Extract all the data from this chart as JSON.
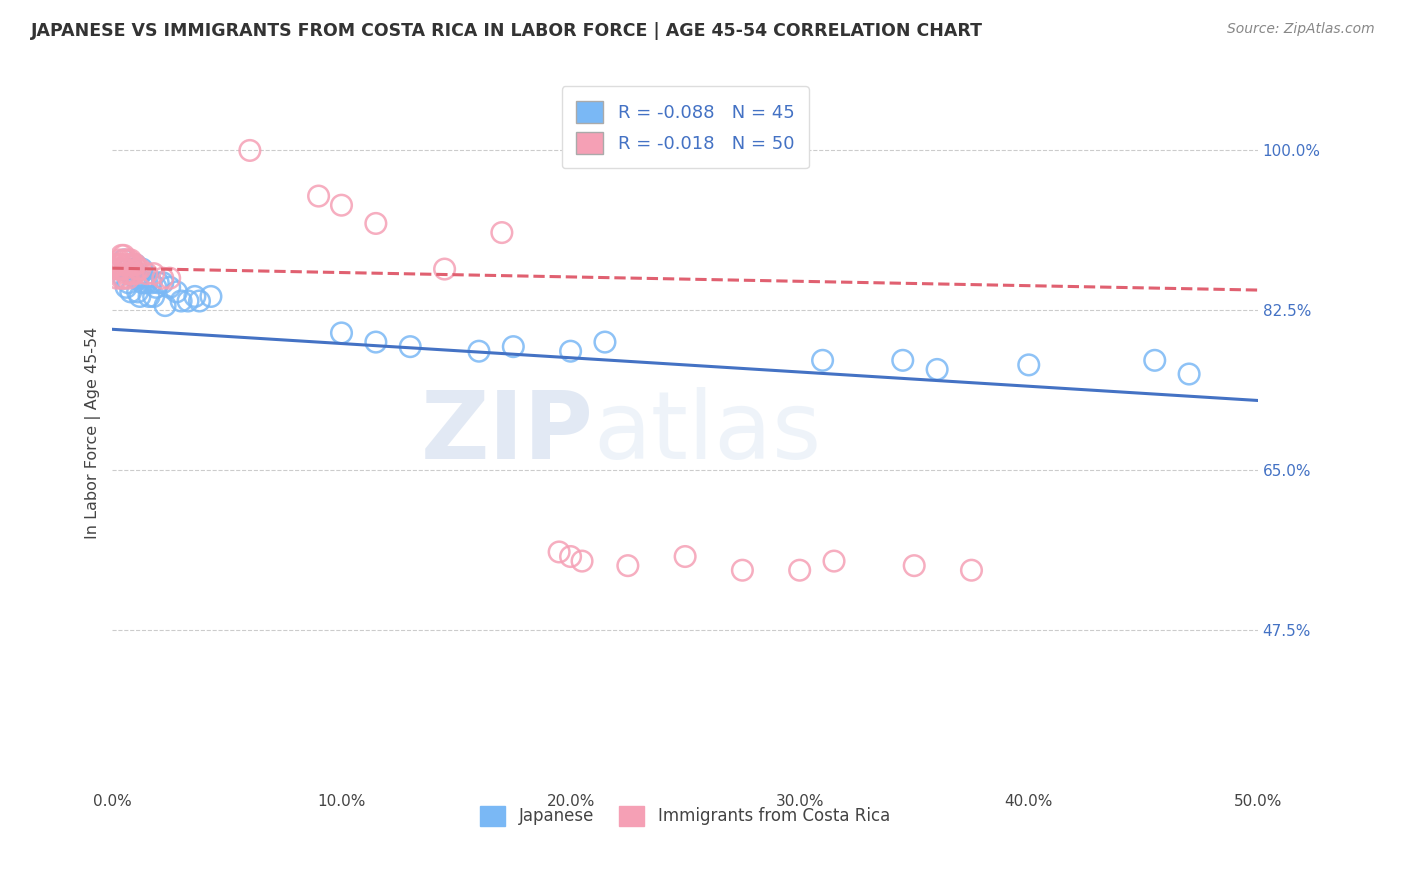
{
  "title": "JAPANESE VS IMMIGRANTS FROM COSTA RICA IN LABOR FORCE | AGE 45-54 CORRELATION CHART",
  "source": "Source: ZipAtlas.com",
  "ylabel": "In Labor Force | Age 45-54",
  "xlim": [
    0.0,
    0.5
  ],
  "ylim": [
    0.3,
    1.08
  ],
  "xtick_labels": [
    "0.0%",
    "10.0%",
    "20.0%",
    "30.0%",
    "40.0%",
    "50.0%"
  ],
  "xtick_vals": [
    0.0,
    0.1,
    0.2,
    0.3,
    0.4,
    0.5
  ],
  "ytick_right_labels": [
    "100.0%",
    "82.5%",
    "65.0%",
    "47.5%"
  ],
  "ytick_right_vals": [
    1.0,
    0.825,
    0.65,
    0.475
  ],
  "grid_color": "#cccccc",
  "background_color": "#ffffff",
  "blue_color": "#7ab8f5",
  "pink_color": "#f5a0b5",
  "blue_R": -0.088,
  "blue_N": 45,
  "pink_R": -0.018,
  "pink_N": 50,
  "legend_label_blue": "Japanese",
  "legend_label_pink": "Immigrants from Costa Rica",
  "watermark_zip": "ZIP",
  "watermark_atlas": "atlas",
  "blue_trend_x": [
    0.0,
    0.5
  ],
  "blue_trend_y": [
    0.804,
    0.726
  ],
  "pink_trend_x": [
    0.0,
    0.5
  ],
  "pink_trend_y": [
    0.871,
    0.847
  ],
  "blue_points_x": [
    0.003,
    0.005,
    0.005,
    0.006,
    0.007,
    0.007,
    0.008,
    0.008,
    0.009,
    0.01,
    0.01,
    0.011,
    0.011,
    0.012,
    0.013,
    0.013,
    0.014,
    0.015,
    0.016,
    0.017,
    0.018,
    0.019,
    0.02,
    0.022,
    0.023,
    0.025,
    0.028,
    0.03,
    0.033,
    0.036,
    0.038,
    0.043,
    0.1,
    0.115,
    0.13,
    0.16,
    0.175,
    0.2,
    0.215,
    0.31,
    0.345,
    0.36,
    0.4,
    0.455,
    0.47
  ],
  "blue_points_y": [
    0.87,
    0.88,
    0.86,
    0.85,
    0.87,
    0.855,
    0.865,
    0.845,
    0.87,
    0.875,
    0.86,
    0.845,
    0.86,
    0.84,
    0.855,
    0.87,
    0.855,
    0.855,
    0.84,
    0.855,
    0.84,
    0.85,
    0.855,
    0.855,
    0.83,
    0.85,
    0.845,
    0.835,
    0.835,
    0.84,
    0.835,
    0.84,
    0.8,
    0.79,
    0.785,
    0.78,
    0.785,
    0.78,
    0.79,
    0.77,
    0.77,
    0.76,
    0.765,
    0.77,
    0.755
  ],
  "pink_points_x": [
    0.001,
    0.002,
    0.002,
    0.003,
    0.003,
    0.003,
    0.004,
    0.004,
    0.004,
    0.004,
    0.005,
    0.005,
    0.005,
    0.005,
    0.006,
    0.006,
    0.006,
    0.007,
    0.007,
    0.007,
    0.007,
    0.008,
    0.008,
    0.008,
    0.009,
    0.009,
    0.01,
    0.01,
    0.011,
    0.012,
    0.015,
    0.018,
    0.022,
    0.025,
    0.06,
    0.09,
    0.1,
    0.115,
    0.145,
    0.17,
    0.195,
    0.2,
    0.205,
    0.225,
    0.25,
    0.275,
    0.3,
    0.315,
    0.35,
    0.375
  ],
  "pink_points_y": [
    0.875,
    0.87,
    0.86,
    0.88,
    0.875,
    0.87,
    0.885,
    0.875,
    0.87,
    0.86,
    0.885,
    0.88,
    0.87,
    0.86,
    0.88,
    0.875,
    0.865,
    0.88,
    0.875,
    0.865,
    0.86,
    0.88,
    0.875,
    0.865,
    0.875,
    0.865,
    0.875,
    0.865,
    0.87,
    0.87,
    0.865,
    0.865,
    0.86,
    0.86,
    1.0,
    0.95,
    0.94,
    0.92,
    0.87,
    0.91,
    0.56,
    0.555,
    0.55,
    0.545,
    0.555,
    0.54,
    0.54,
    0.55,
    0.545,
    0.54
  ]
}
